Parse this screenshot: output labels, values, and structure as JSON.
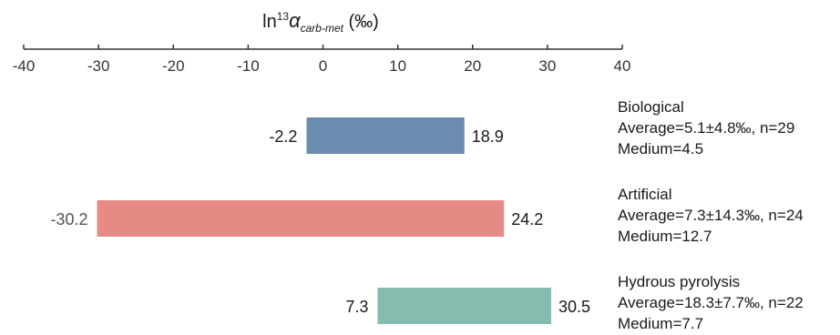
{
  "chart_data": {
    "type": "bar",
    "orientation": "horizontal-range",
    "title": "",
    "axis_title": {
      "prefix": "ln",
      "superscript": "13",
      "symbol": "α",
      "subscript": "carb-met",
      "unit": " (‰)"
    },
    "axis_position": "top",
    "xlim": [
      -40,
      40
    ],
    "xticks": [
      -40,
      -30,
      -20,
      -10,
      0,
      10,
      20,
      30,
      40
    ],
    "grid": false,
    "series": [
      {
        "name": "Biological",
        "min": -2.2,
        "max": 18.9,
        "min_label": "-2.2",
        "max_label": "18.9",
        "color": "#6b8cb1",
        "average_text": "Average=5.1±4.8‰, n=29",
        "median_text": "Medium=4.5"
      },
      {
        "name": "Artificial",
        "min": -30.2,
        "max": 24.2,
        "min_label": "-30.2",
        "max_label": "24.2",
        "color": "#e68a86",
        "average_text": "Average=7.3±14.3‰, n=24",
        "median_text": "Medium=12.7"
      },
      {
        "name": "Hydrous pyrolysis",
        "min": 7.3,
        "max": 30.5,
        "min_label": "7.3",
        "max_label": "30.5",
        "color": "#86bbb0",
        "average_text": "Average=18.3±7.7‰, n=22",
        "median_text": "Medium=7.7"
      }
    ]
  }
}
